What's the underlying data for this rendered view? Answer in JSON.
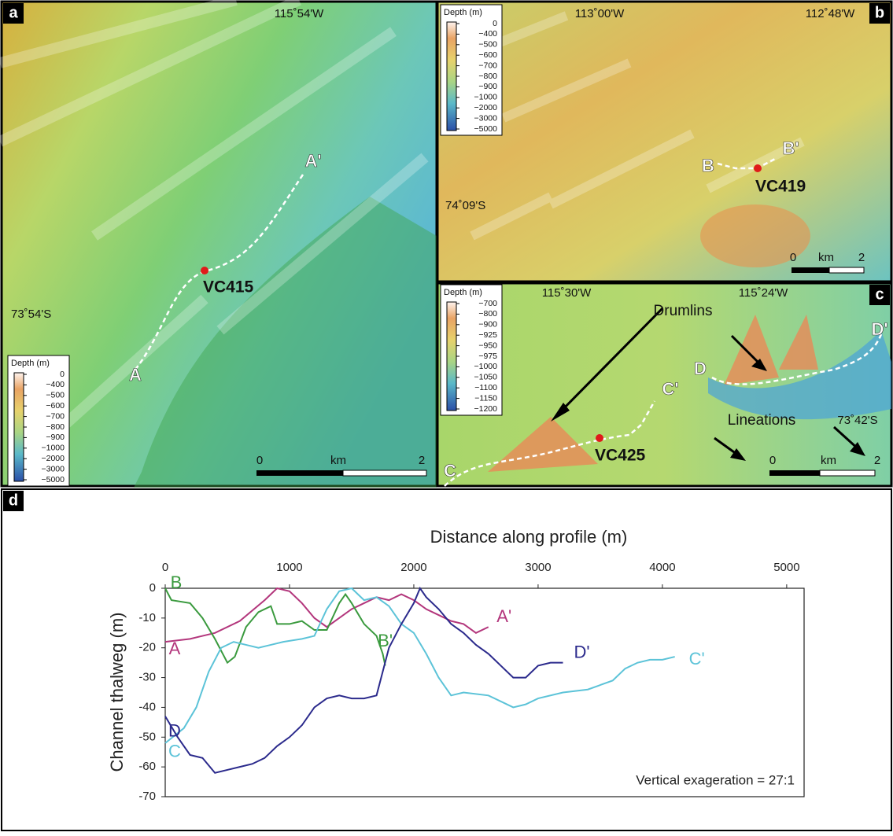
{
  "panels": {
    "a": {
      "letter": "a",
      "lon": "115˚54'W",
      "lat": "73˚54'S",
      "legend": {
        "title": "Depth (m)",
        "labels": [
          "0",
          "−400",
          "−500",
          "−600",
          "−700",
          "−800",
          "−900",
          "−1000",
          "−2000",
          "−3000",
          "−5000"
        ]
      },
      "profile_start": "A",
      "profile_end": "A'",
      "core": "VC415",
      "scale": {
        "start": "0",
        "unit": "km",
        "end": "2"
      }
    },
    "b": {
      "letter": "b",
      "lons": [
        "113˚00'W",
        "112˚48'W"
      ],
      "lat": "74˚09'S",
      "legend": {
        "title": "Depth (m)",
        "labels": [
          "0",
          "−400",
          "−500",
          "−600",
          "−700",
          "−800",
          "−900",
          "−1000",
          "−2000",
          "−3000",
          "−5000"
        ]
      },
      "profile_start": "B",
      "profile_end": "B'",
      "core": "VC419",
      "scale": {
        "start": "0",
        "unit": "km",
        "end": "2"
      }
    },
    "c": {
      "letter": "c",
      "lons": [
        "115˚30'W",
        "115˚24'W"
      ],
      "lat": "73˚42'S",
      "legend": {
        "title": "Depth (m)",
        "labels": [
          "−700",
          "−800",
          "−900",
          "−925",
          "−950",
          "−975",
          "−1000",
          "−1050",
          "−1100",
          "−1150",
          "−1200"
        ]
      },
      "profiles": [
        {
          "start": "C",
          "end": "C'"
        },
        {
          "start": "D",
          "end": "D'"
        }
      ],
      "core": "VC425",
      "annotations": [
        "Drumlins",
        "Lineations"
      ],
      "scale": {
        "start": "0",
        "unit": "km",
        "end": "2"
      }
    },
    "d": {
      "letter": "d"
    }
  },
  "chart_data": {
    "type": "line",
    "x_label": "Distance along profile (m)",
    "y_label": "Channel thalweg (m)",
    "annotation": "Vertical exageration = 27:1",
    "xlim": [
      0,
      5140
    ],
    "xticks": [
      0,
      1000,
      2000,
      3000,
      4000,
      5000
    ],
    "ylim": [
      -70,
      0
    ],
    "yticks": [
      0,
      -10,
      -20,
      -30,
      -40,
      -50,
      -60,
      -70
    ],
    "series": [
      {
        "start_label": "A",
        "end_label": "A'",
        "color": "#b3367c",
        "x": [
          0,
          200,
          400,
          600,
          800,
          900,
          1000,
          1100,
          1200,
          1300,
          1400,
          1500,
          1600,
          1700,
          1800,
          1900,
          2000,
          2100,
          2200,
          2300,
          2400,
          2500,
          2600
        ],
        "values": [
          -18,
          -17,
          -15,
          -11,
          -4,
          0,
          -1,
          -5,
          -10,
          -13,
          -10,
          -7,
          -5,
          -3,
          -4,
          -2,
          -4,
          -7,
          -9,
          -11,
          -12,
          -15,
          -13
        ]
      },
      {
        "start_label": "B",
        "end_label": "B'",
        "color": "#3a9a3e",
        "x": [
          0,
          50,
          200,
          300,
          400,
          500,
          560,
          650,
          750,
          850,
          900,
          1000,
          1100,
          1200,
          1300,
          1400,
          1450,
          1500,
          1600,
          1700,
          1750,
          1770
        ],
        "values": [
          0,
          -4,
          -5,
          -10,
          -17,
          -25,
          -23,
          -13,
          -8,
          -6,
          -12,
          -12,
          -11,
          -14,
          -14,
          -5,
          -2,
          -5,
          -12,
          -16,
          -22,
          -26
        ]
      },
      {
        "start_label": "C",
        "end_label": "C'",
        "color": "#5cc3d8",
        "x": [
          0,
          150,
          250,
          350,
          450,
          550,
          650,
          750,
          850,
          950,
          1100,
          1200,
          1300,
          1400,
          1500,
          1600,
          1700,
          1800,
          1900,
          2000,
          2100,
          2200,
          2300,
          2400,
          2600,
          2800,
          2900,
          3000,
          3200,
          3400,
          3600,
          3700,
          3800,
          3900,
          4000,
          4100
        ],
        "values": [
          -52,
          -47,
          -40,
          -28,
          -20,
          -18,
          -19,
          -20,
          -19,
          -18,
          -17,
          -16,
          -7,
          -1,
          0,
          -4,
          -3,
          -6,
          -12,
          -15,
          -22,
          -30,
          -36,
          -35,
          -36,
          -40,
          -39,
          -37,
          -35,
          -34,
          -31,
          -27,
          -25,
          -24,
          -24,
          -23
        ]
      },
      {
        "start_label": "D",
        "end_label": "D'",
        "color": "#2b2a8c",
        "x": [
          0,
          100,
          200,
          300,
          400,
          500,
          600,
          700,
          800,
          900,
          1000,
          1100,
          1200,
          1300,
          1400,
          1500,
          1600,
          1700,
          1800,
          1900,
          2000,
          2050,
          2100,
          2200,
          2300,
          2400,
          2500,
          2600,
          2700,
          2800,
          2900,
          3000,
          3100,
          3200
        ],
        "values": [
          -43,
          -50,
          -56,
          -57,
          -62,
          -61,
          -60,
          -59,
          -57,
          -53,
          -50,
          -46,
          -40,
          -37,
          -36,
          -37,
          -37,
          -36,
          -20,
          -12,
          -5,
          0,
          -3,
          -7,
          -12,
          -15,
          -19,
          -22,
          -26,
          -30,
          -30,
          -26,
          -25,
          -25
        ]
      }
    ]
  }
}
